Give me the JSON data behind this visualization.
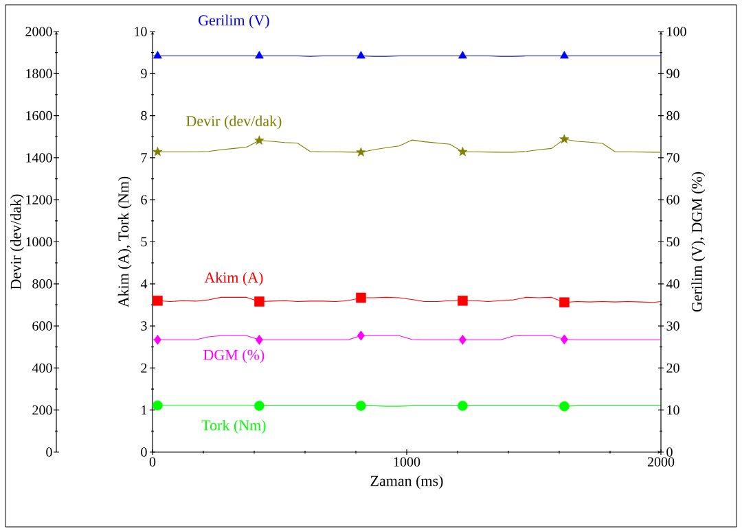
{
  "chart_data": {
    "type": "line",
    "xlabel": "Zaman (ms)",
    "ylabel": "Akim (A), Tork (Nm)",
    "y2label": "Gerilim (V), DGM (%)",
    "y3label": "Devir (dev/dak)",
    "x": [
      0,
      20,
      70,
      120,
      170,
      220,
      270,
      320,
      370,
      420,
      470,
      520,
      570,
      620,
      670,
      720,
      770,
      820,
      870,
      920,
      970,
      1020,
      1070,
      1120,
      1170,
      1220,
      1270,
      1320,
      1370,
      1420,
      1470,
      1520,
      1570,
      1620,
      1670,
      1720,
      1770,
      1820,
      1870,
      1920,
      1970,
      2000
    ],
    "xlim": [
      0,
      2000
    ],
    "xticks": [
      0,
      1000,
      2000
    ],
    "ylim": [
      0,
      10
    ],
    "yticks": [
      0,
      1,
      2,
      3,
      4,
      5,
      6,
      7,
      8,
      9,
      10
    ],
    "y2lim": [
      0,
      100
    ],
    "y2ticks": [
      0,
      10,
      20,
      30,
      40,
      50,
      60,
      70,
      80,
      90,
      100
    ],
    "y3lim": [
      0,
      2000
    ],
    "y3ticks": [
      0,
      200,
      400,
      600,
      800,
      1000,
      1200,
      1400,
      1600,
      1800,
      2000
    ],
    "series": [
      {
        "name": "Gerilim (V)",
        "color": "#0000ff",
        "axis": "y2",
        "values": [
          94.2,
          94.2,
          94.2,
          94.2,
          94.2,
          94.2,
          94.2,
          94.2,
          94.2,
          94.2,
          94.2,
          94.2,
          94.2,
          94.1,
          94.2,
          94.2,
          94.2,
          94.2,
          94.1,
          94.1,
          94.2,
          94.2,
          94.2,
          94.2,
          94.2,
          94.2,
          94.2,
          94.2,
          94.1,
          94.1,
          94.2,
          94.2,
          94.2,
          94.2,
          94.2,
          94.2,
          94.2,
          94.2,
          94.2,
          94.2,
          94.2,
          94.2
        ]
      },
      {
        "name": "Devir (dev/dak)",
        "color": "#808000",
        "axis": "y3",
        "values": [
          1428,
          1428,
          1428,
          1428,
          1428,
          1430,
          1438,
          1444,
          1450,
          1482,
          1478,
          1472,
          1470,
          1430,
          1428,
          1428,
          1427,
          1426,
          1438,
          1448,
          1456,
          1484,
          1476,
          1470,
          1464,
          1428,
          1428,
          1427,
          1426,
          1426,
          1430,
          1438,
          1444,
          1488,
          1478,
          1474,
          1468,
          1428,
          1428,
          1427,
          1426,
          1426
        ]
      },
      {
        "name": "Akim (A)",
        "color": "#ff0000",
        "axis": "y",
        "values": [
          3.6,
          3.6,
          3.58,
          3.6,
          3.59,
          3.62,
          3.68,
          3.68,
          3.68,
          3.58,
          3.59,
          3.6,
          3.58,
          3.59,
          3.59,
          3.58,
          3.6,
          3.67,
          3.67,
          3.68,
          3.67,
          3.63,
          3.58,
          3.58,
          3.6,
          3.6,
          3.6,
          3.58,
          3.6,
          3.62,
          3.68,
          3.67,
          3.68,
          3.56,
          3.58,
          3.57,
          3.58,
          3.57,
          3.58,
          3.57,
          3.56,
          3.58
        ]
      },
      {
        "name": "DGM (%)",
        "color": "#ff00ff",
        "axis": "y2",
        "values": [
          26.7,
          26.7,
          26.7,
          26.7,
          26.7,
          27.4,
          27.7,
          27.7,
          27.7,
          26.7,
          26.7,
          26.7,
          26.7,
          26.7,
          26.7,
          26.7,
          26.7,
          27.7,
          27.7,
          27.7,
          27.7,
          26.8,
          26.7,
          26.7,
          26.7,
          26.7,
          26.7,
          26.7,
          26.7,
          27.6,
          27.7,
          27.7,
          27.7,
          26.8,
          26.7,
          26.7,
          26.7,
          26.7,
          26.7,
          26.7,
          26.7,
          26.7
        ]
      },
      {
        "name": "Tork (Nm)",
        "color": "#00ff00",
        "axis": "y",
        "values": [
          1.11,
          1.11,
          1.11,
          1.11,
          1.11,
          1.11,
          1.11,
          1.11,
          1.11,
          1.1,
          1.1,
          1.1,
          1.1,
          1.1,
          1.1,
          1.1,
          1.1,
          1.1,
          1.1,
          1.09,
          1.09,
          1.1,
          1.1,
          1.1,
          1.1,
          1.1,
          1.1,
          1.1,
          1.1,
          1.1,
          1.1,
          1.1,
          1.1,
          1.09,
          1.1,
          1.1,
          1.1,
          1.1,
          1.1,
          1.1,
          1.1,
          1.1
        ]
      },
      {
        "type": "scatter",
        "color": "#0000ff",
        "axis": "y2",
        "marker": "triangle",
        "x": [
          20,
          420,
          820,
          1220,
          1620
        ],
        "values": [
          94.2,
          94.2,
          94.2,
          94.2,
          94.2
        ]
      },
      {
        "type": "scatter",
        "color": "#808000",
        "axis": "y3",
        "marker": "star",
        "x": [
          20,
          420,
          820,
          1220,
          1620
        ],
        "values": [
          1428,
          1482,
          1426,
          1428,
          1488
        ]
      },
      {
        "type": "scatter",
        "color": "#ff0000",
        "axis": "y",
        "marker": "square",
        "x": [
          20,
          420,
          820,
          1220,
          1620
        ],
        "values": [
          3.6,
          3.58,
          3.67,
          3.6,
          3.56
        ]
      },
      {
        "type": "scatter",
        "color": "#ff00ff",
        "axis": "y2",
        "marker": "diamond",
        "x": [
          20,
          420,
          820,
          1220,
          1620
        ],
        "values": [
          26.7,
          26.7,
          27.7,
          26.7,
          26.8
        ]
      },
      {
        "type": "scatter",
        "color": "#00ff00",
        "axis": "y",
        "marker": "circle",
        "x": [
          20,
          420,
          820,
          1220,
          1620
        ],
        "values": [
          1.11,
          1.1,
          1.1,
          1.1,
          1.09
        ]
      }
    ]
  }
}
